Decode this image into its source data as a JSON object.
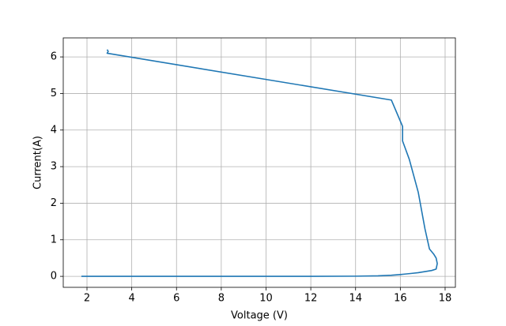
{
  "chart_data": {
    "type": "line",
    "x_label": "Voltage (V)",
    "y_label": "Current(A)",
    "x": [
      1.75,
      4,
      8,
      12,
      14,
      15,
      15.6,
      16,
      16.5,
      16.8,
      17.1,
      17.4,
      17.6,
      17.65,
      17.6,
      17.5,
      17.3,
      17.1,
      16.8,
      16.4,
      16.1,
      16.1,
      15.6,
      2.9,
      2.95,
      2.9
    ],
    "values": [
      0,
      0,
      0,
      0,
      0.005,
      0.015,
      0.03,
      0.05,
      0.08,
      0.1,
      0.13,
      0.16,
      0.2,
      0.35,
      0.5,
      0.6,
      0.75,
      1.3,
      2.3,
      3.2,
      3.7,
      4.1,
      4.82,
      6.1,
      6.15,
      6.2
    ],
    "color": "#1f77b4",
    "xlim": [
      0.94,
      18.46
    ],
    "ylim": [
      -0.3,
      6.52
    ],
    "xticks": [
      2,
      4,
      6,
      8,
      10,
      12,
      14,
      16,
      18
    ],
    "yticks": [
      0,
      1,
      2,
      3,
      4,
      5,
      6
    ],
    "grid": true
  }
}
